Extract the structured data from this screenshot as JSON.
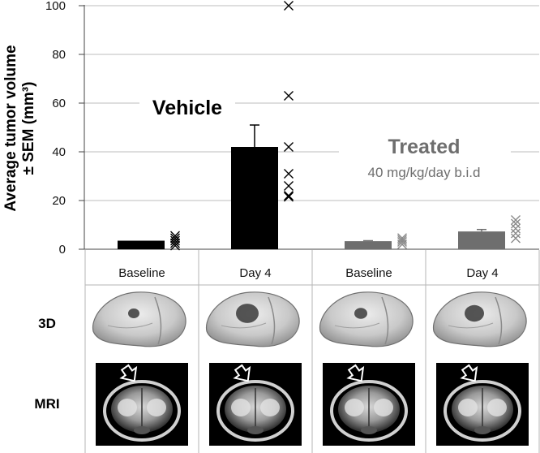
{
  "chart_data": {
    "type": "bar",
    "ylabel_line1": "Average tumor volume",
    "ylabel_line2": "± SEM (mm³)",
    "ylim": [
      0,
      100
    ],
    "yticks": [
      0,
      20,
      40,
      60,
      80,
      100
    ],
    "grid": true,
    "categories": [
      "Baseline",
      "Day 4",
      "Baseline",
      "Day 4"
    ],
    "groups": [
      {
        "title": "Vehicle",
        "subtitle": "",
        "color": "#000000"
      },
      {
        "title": "Treated",
        "subtitle": "40 mg/kg/day b.i.d",
        "color": "#6e6e6e"
      }
    ],
    "bars": [
      {
        "group": 0,
        "value": 3.5,
        "sem": 0,
        "points": [
          1.5,
          2.5,
          3.5,
          4.5,
          5.5
        ]
      },
      {
        "group": 0,
        "value": 42,
        "sem": 9,
        "points": [
          100,
          63,
          42,
          31,
          26,
          22,
          21.5
        ]
      },
      {
        "group": 1,
        "value": 3.3,
        "sem": 0.2,
        "points": [
          2,
          3,
          3.8,
          4.6
        ]
      },
      {
        "group": 1,
        "value": 7.3,
        "sem": 0.8,
        "points": [
          4.5,
          6.5,
          8.5,
          10.5,
          12
        ]
      }
    ],
    "row_labels": [
      "3D",
      "MRI"
    ]
  }
}
